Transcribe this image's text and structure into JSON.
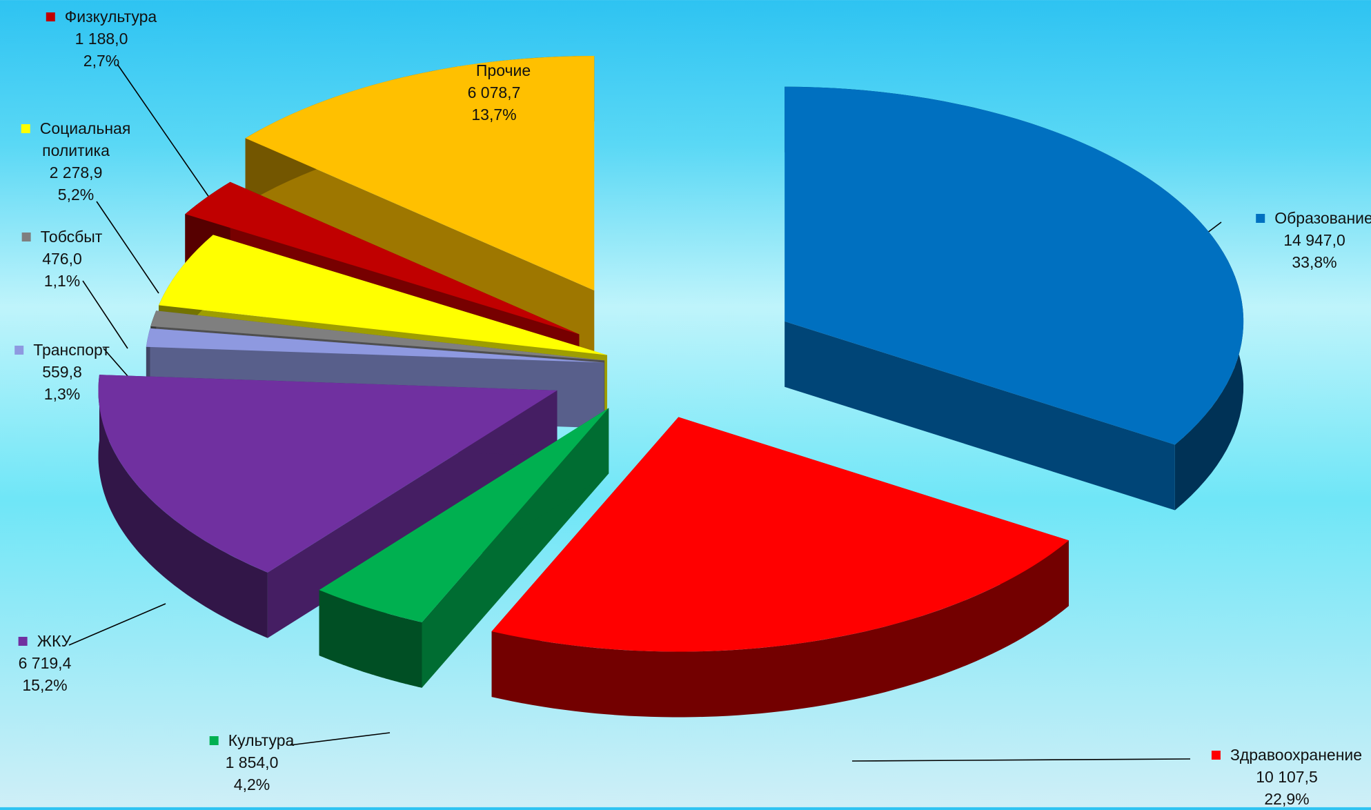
{
  "chart_data": {
    "type": "pie",
    "slices": [
      {
        "label": "Образование",
        "value_text": "14 947,0",
        "value": 14947.0,
        "percent_text": "33,8%",
        "percent": 33.8,
        "color": "#0070c0"
      },
      {
        "label": "Здравоохранение",
        "value_text": "10 107,5",
        "value": 10107.5,
        "percent_text": "22,9%",
        "percent": 22.9,
        "color": "#ff0000"
      },
      {
        "label": "Культура",
        "value_text": "1 854,0",
        "value": 1854.0,
        "percent_text": "4,2%",
        "percent": 4.2,
        "color": "#00b050"
      },
      {
        "label": "ЖКУ",
        "value_text": "6 719,4",
        "value": 6719.4,
        "percent_text": "15,2%",
        "percent": 15.2,
        "color": "#7030a0"
      },
      {
        "label": "Транспорт",
        "value_text": "559,8",
        "value": 559.8,
        "percent_text": "1,3%",
        "percent": 1.3,
        "color": "#8e99e0"
      },
      {
        "label": "Тобсбыт",
        "value_text": "476,0",
        "value": 476.0,
        "percent_text": "1,1%",
        "percent": 1.1,
        "color": "#7f7f7f"
      },
      {
        "label": "Социальная политика",
        "label_lines": [
          "Социальная",
          "политика"
        ],
        "value_text": "2 278,9",
        "value": 2278.9,
        "percent_text": "5,2%",
        "percent": 5.2,
        "color": "#ffff00"
      },
      {
        "label": "Физкультура",
        "value_text": "1 188,0",
        "value": 1188.0,
        "percent_text": "2,7%",
        "percent": 2.7,
        "color": "#c00000"
      },
      {
        "label": "Прочие",
        "value_text": "6 078,7",
        "value": 6078.7,
        "percent_text": "13,7%",
        "percent": 13.7,
        "color": "#ffc000"
      }
    ],
    "exploded": true,
    "style": "3d"
  }
}
